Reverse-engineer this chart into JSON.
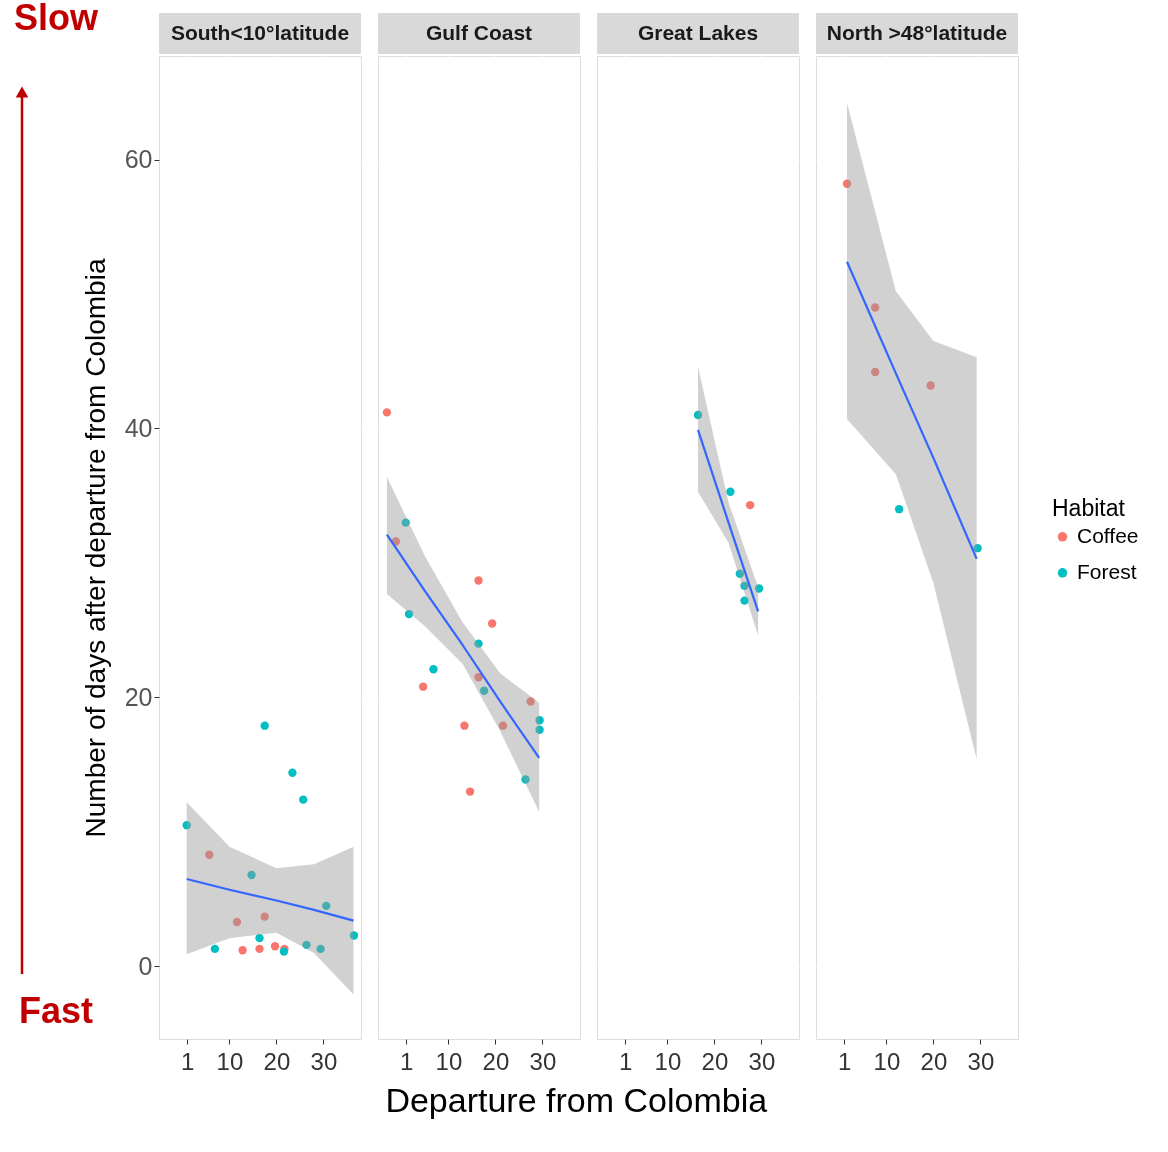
{
  "chart_data": [
    {
      "type": "scatter",
      "title": "South<10°latitude",
      "ylabel": "Number of days after departure from Colombia",
      "annotations": [
        "Slow",
        "Fast"
      ],
      "legend": "right",
      "legend_title": "Habitat",
      "grid": true,
      "xlim": [
        -5,
        38
      ],
      "xticks": [
        1,
        10,
        20,
        30
      ],
      "ylim": [
        -5.4,
        67.7
      ],
      "yticks": [
        0,
        20,
        40,
        60
      ],
      "series": [
        {
          "name": "Coffee",
          "color": "#f8766d",
          "marker": "circle",
          "x": [
            5.7,
            11.6,
            17.5,
            12.8,
            16.4,
            19.7,
            21.7
          ],
          "values": [
            8.3,
            3.3,
            3.7,
            1.2,
            1.3,
            1.5,
            1.3
          ]
        },
        {
          "name": "Forest",
          "color": "#00bfc4",
          "marker": "circle",
          "x": [
            17.5,
            23.4,
            25.7,
            0.9,
            14.7,
            30.6,
            16.4,
            6.9,
            21.6,
            26.4,
            29.4,
            36.5
          ],
          "values": [
            17.9,
            14.4,
            12.4,
            10.5,
            6.8,
            4.5,
            2.1,
            1.3,
            1.1,
            1.6,
            1.3,
            2.3
          ]
        },
        {
          "type": "line",
          "color": "#3366ff",
          "line_style": "solid",
          "x": [
            0.9,
            10,
            20,
            28,
            36.4
          ],
          "values": [
            6.5,
            5.7,
            4.9,
            4.2,
            3.4
          ],
          "lower": [
            0.9,
            2.1,
            2.5,
            1.0,
            -2.1
          ],
          "upper": [
            12.2,
            8.9,
            7.3,
            7.6,
            8.9
          ]
        }
      ]
    },
    {
      "type": "scatter",
      "title": "Gulf Coast",
      "grid": true,
      "tick_labels": "x",
      "xlim": [
        -5,
        38
      ],
      "xticks": [
        1,
        10,
        20,
        30
      ],
      "ylim": [
        -5.4,
        67.7
      ],
      "yticks": [
        0,
        20,
        40,
        60
      ],
      "series": [
        {
          "name": "Coffee",
          "color": "#f8766d",
          "marker": "circle",
          "x": [
            -3.1,
            -1.2,
            16.4,
            19.3,
            4.6,
            16.4,
            27.5,
            13.4,
            21.6,
            14.6
          ],
          "values": [
            41.2,
            31.6,
            28.7,
            25.5,
            20.8,
            21.5,
            19.7,
            17.9,
            17.9,
            13.0
          ]
        },
        {
          "name": "Forest",
          "color": "#00bfc4",
          "marker": "circle",
          "x": [
            0.9,
            1.6,
            16.4,
            6.8,
            17.6,
            29.4,
            29.4,
            26.4
          ],
          "values": [
            33.0,
            26.2,
            24.0,
            22.1,
            20.5,
            18.3,
            17.6,
            13.9
          ]
        },
        {
          "type": "line",
          "color": "#3366ff",
          "line_style": "solid",
          "x": [
            -3.1,
            5,
            13,
            21,
            29.3
          ],
          "values": [
            32.1,
            27.9,
            23.9,
            19.7,
            15.5
          ],
          "lower": [
            27.7,
            25.3,
            22.5,
            17.5,
            11.5
          ],
          "upper": [
            36.4,
            30.5,
            25.6,
            21.8,
            19.6
          ]
        }
      ]
    },
    {
      "type": "scatter",
      "title": "Great Lakes",
      "xlabel": "Departure from Colombia",
      "grid": true,
      "tick_labels": "x",
      "xlim": [
        -5,
        38
      ],
      "xticks": [
        1,
        10,
        20,
        30
      ],
      "ylim": [
        -5.4,
        67.7
      ],
      "yticks": [
        0,
        20,
        40,
        60
      ],
      "series": [
        {
          "name": "Coffee",
          "color": "#f8766d",
          "marker": "circle",
          "x": [
            27.6
          ],
          "values": [
            34.3
          ]
        },
        {
          "name": "Forest",
          "color": "#00bfc4",
          "marker": "circle",
          "x": [
            16.5,
            23.4,
            25.4,
            26.4,
            29.5,
            26.4
          ],
          "values": [
            41.0,
            35.3,
            29.2,
            28.3,
            28.1,
            27.2
          ]
        },
        {
          "type": "line",
          "color": "#3366ff",
          "line_style": "solid",
          "x": [
            16.5,
            23,
            29.3
          ],
          "values": [
            39.9,
            33.0,
            26.4
          ],
          "lower": [
            35.3,
            31.5,
            24.6
          ],
          "upper": [
            44.6,
            34.5,
            28.2
          ]
        }
      ]
    },
    {
      "type": "scatter",
      "title": "North >48°latitude",
      "grid": true,
      "tick_labels": "x",
      "xlim": [
        -5,
        38
      ],
      "xticks": [
        1,
        10,
        20,
        30
      ],
      "ylim": [
        -5.4,
        67.7
      ],
      "yticks": [
        0,
        20,
        40,
        60
      ],
      "series": [
        {
          "name": "Coffee",
          "color": "#f8766d",
          "marker": "circle",
          "x": [
            1.6,
            7.6,
            7.6,
            19.4
          ],
          "values": [
            58.2,
            49.0,
            44.2,
            43.2
          ]
        },
        {
          "name": "Forest",
          "color": "#00bfc4",
          "marker": "circle",
          "x": [
            12.7,
            29.4
          ],
          "values": [
            34.0,
            31.1
          ]
        },
        {
          "type": "line",
          "color": "#3366ff",
          "line_style": "solid",
          "x": [
            1.6,
            12,
            20,
            29.2
          ],
          "values": [
            52.4,
            44.1,
            37.8,
            30.3
          ],
          "lower": [
            40.7,
            36.6,
            28.5,
            15.4
          ],
          "upper": [
            64.2,
            50.2,
            46.5,
            45.3
          ]
        }
      ]
    }
  ]
}
